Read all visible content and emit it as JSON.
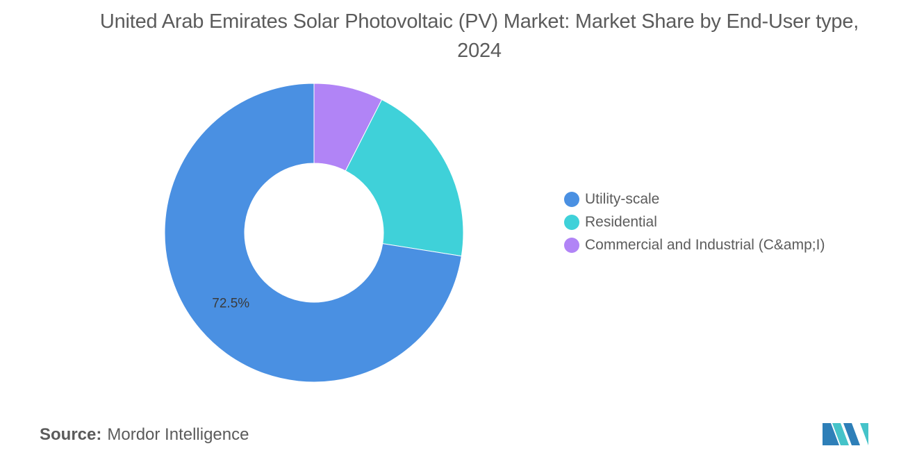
{
  "chart_data": {
    "type": "pie",
    "title": "United Arab Emirates Solar Photovoltaic (PV) Market: Market Share by End-User type, 2024",
    "categories": [
      "Utility-scale",
      "Residential",
      "Commercial and Industrial (C&amp;I)"
    ],
    "values": [
      72.5,
      20.0,
      7.5
    ],
    "colors": [
      "#4a90e2",
      "#3fd1d9",
      "#b184f6"
    ],
    "data_labels": [
      "72.5%",
      "",
      ""
    ],
    "donut": true,
    "legend_position": "right"
  },
  "source": {
    "label": "Source:",
    "value": "Mordor Intelligence"
  },
  "logo": {
    "name": "mordor-intelligence-logo",
    "colors": [
      "#2e7fb8",
      "#45c3c9"
    ]
  }
}
